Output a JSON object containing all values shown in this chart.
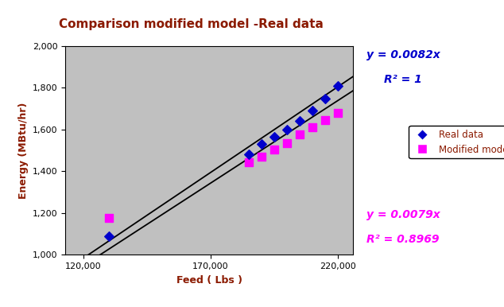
{
  "title": "Comparison modified model -Real data",
  "title_color": "#8B1A00",
  "xlabel": "Feed ( Lbs )",
  "ylabel": "Energy (MBtu/hr)",
  "xlabel_color": "#8B1A00",
  "ylabel_color": "#8B1A00",
  "xlim": [
    120000,
    225000
  ],
  "ylim": [
    1000,
    2000
  ],
  "xticks": [
    120000,
    170000,
    220000
  ],
  "yticks": [
    1000,
    1200,
    1400,
    1600,
    1800,
    2000
  ],
  "real_data_x": [
    130000,
    185000,
    190000,
    195000,
    200000,
    205000,
    210000,
    215000,
    220000
  ],
  "real_data_y": [
    1090,
    1480,
    1530,
    1565,
    1600,
    1640,
    1690,
    1750,
    1810
  ],
  "modified_model_x": [
    130000,
    185000,
    190000,
    195000,
    200000,
    205000,
    210000,
    215000,
    220000
  ],
  "modified_model_y": [
    1175,
    1445,
    1470,
    1505,
    1535,
    1575,
    1610,
    1645,
    1680
  ],
  "trend1_slope": 0.0082,
  "trend2_slope": 0.0079,
  "real_color": "#0000CC",
  "modified_color": "#FF00FF",
  "trend_color": "#000000",
  "legend_text_color": "#8B1A00",
  "eq1_text": "y = 0.0082x",
  "eq1_r2": "R² = 1",
  "eq2_text": "y = 0.0079x",
  "eq2_r2": "R² = 0.8969",
  "eq_color_blue": "#0000CC",
  "eq_color_magenta": "#FF00FF",
  "plot_bg_color": "#C0C0C0",
  "fig_bg_color": "#FFFFFF"
}
